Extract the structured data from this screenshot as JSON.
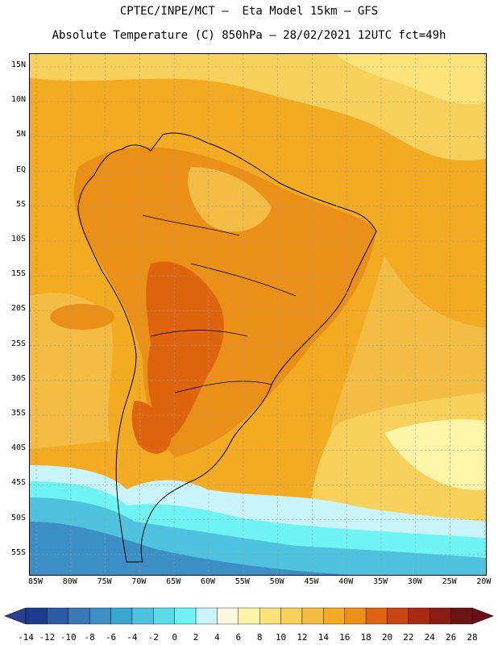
{
  "header": {
    "line1": "CPTEC/INPE/MCT –  Eta Model 15km – GFS",
    "line2": "Absolute Temperature (C) 850hPa – 28/02/2021 12UTC fct=49h"
  },
  "map": {
    "lat_labels": [
      "15N",
      "10N",
      "5N",
      "EQ",
      "5S",
      "10S",
      "15S",
      "20S",
      "25S",
      "30S",
      "35S",
      "40S",
      "45S",
      "50S",
      "55S"
    ],
    "lon_labels": [
      "85W",
      "80W",
      "75W",
      "70W",
      "65W",
      "60W",
      "55W",
      "50W",
      "45W",
      "40W",
      "35W",
      "30W",
      "25W",
      "20W"
    ],
    "gridlines": "dotted"
  },
  "colorbar": {
    "labels": [
      "-14",
      "-12",
      "-10",
      "-8",
      "-6",
      "-4",
      "-2",
      "0",
      "2",
      "4",
      "6",
      "8",
      "10",
      "12",
      "14",
      "16",
      "18",
      "20",
      "22",
      "24",
      "26",
      "28"
    ],
    "colors": [
      "#1d3c8e",
      "#2a5ba4",
      "#3a78b8",
      "#3b8fc4",
      "#3aa6cf",
      "#4ec2de",
      "#5cdbe8",
      "#6ff3f4",
      "#c9f4fb",
      "#fff8e0",
      "#fff5a8",
      "#fde37a",
      "#f8d05c",
      "#f3bd45",
      "#f2ab22",
      "#ea8f18",
      "#de6410",
      "#c84410",
      "#a8290e",
      "#8a1e14",
      "#6b1214"
    ]
  }
}
